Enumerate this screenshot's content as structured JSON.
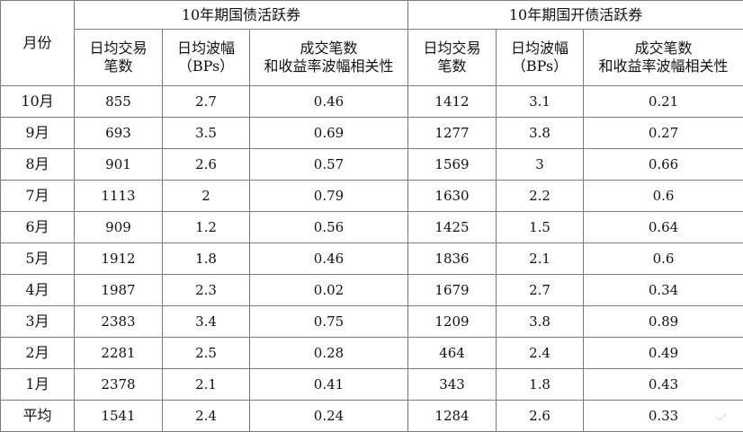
{
  "header": {
    "month_label": "月份",
    "group_1": "10年期国债活跃券",
    "group_2": "10年期国开债活跃券",
    "col_trades": "日均交易\n笔数",
    "col_trades_line1": "日均交易",
    "col_trades_line2": "笔数",
    "col_range_line1": "日均波幅",
    "col_range_line2": "（BPs）",
    "col_corr_line1": "成交笔数",
    "col_corr_line2": "和收益率波幅相关性"
  },
  "rows": [
    {
      "month": "10月",
      "g_trades": "855",
      "g_range": "2.7",
      "g_corr": "0.46",
      "k_trades": "1412",
      "k_range": "3.1",
      "k_corr": "0.21"
    },
    {
      "month": "9月",
      "g_trades": "693",
      "g_range": "3.5",
      "g_corr": "0.69",
      "k_trades": "1277",
      "k_range": "3.8",
      "k_corr": "0.27"
    },
    {
      "month": "8月",
      "g_trades": "901",
      "g_range": "2.6",
      "g_corr": "0.57",
      "k_trades": "1569",
      "k_range": "3",
      "k_corr": "0.66"
    },
    {
      "month": "7月",
      "g_trades": "1113",
      "g_range": "2",
      "g_corr": "0.79",
      "k_trades": "1630",
      "k_range": "2.2",
      "k_corr": "0.6"
    },
    {
      "month": "6月",
      "g_trades": "909",
      "g_range": "1.2",
      "g_corr": "0.56",
      "k_trades": "1425",
      "k_range": "1.5",
      "k_corr": "0.64"
    },
    {
      "month": "5月",
      "g_trades": "1912",
      "g_range": "1.8",
      "g_corr": "0.46",
      "k_trades": "1836",
      "k_range": "2.1",
      "k_corr": "0.6"
    },
    {
      "month": "4月",
      "g_trades": "1987",
      "g_range": "2.3",
      "g_corr": "0.02",
      "k_trades": "1679",
      "k_range": "2.7",
      "k_corr": "0.34"
    },
    {
      "month": "3月",
      "g_trades": "2383",
      "g_range": "3.4",
      "g_corr": "0.75",
      "k_trades": "1209",
      "k_range": "3.8",
      "k_corr": "0.89"
    },
    {
      "month": "2月",
      "g_trades": "2281",
      "g_range": "2.5",
      "g_corr": "0.28",
      "k_trades": "464",
      "k_range": "2.4",
      "k_corr": "0.49"
    },
    {
      "month": "1月",
      "g_trades": "2378",
      "g_range": "2.1",
      "g_corr": "0.41",
      "k_trades": "343",
      "k_range": "1.8",
      "k_corr": "0.43"
    },
    {
      "month": "平均",
      "g_trades": "1541",
      "g_range": "2.4",
      "g_corr": "0.24",
      "k_trades": "1284",
      "k_range": "2.6",
      "k_corr": "0.33"
    }
  ],
  "icons": {
    "corner": "watermark-mark-icon"
  }
}
